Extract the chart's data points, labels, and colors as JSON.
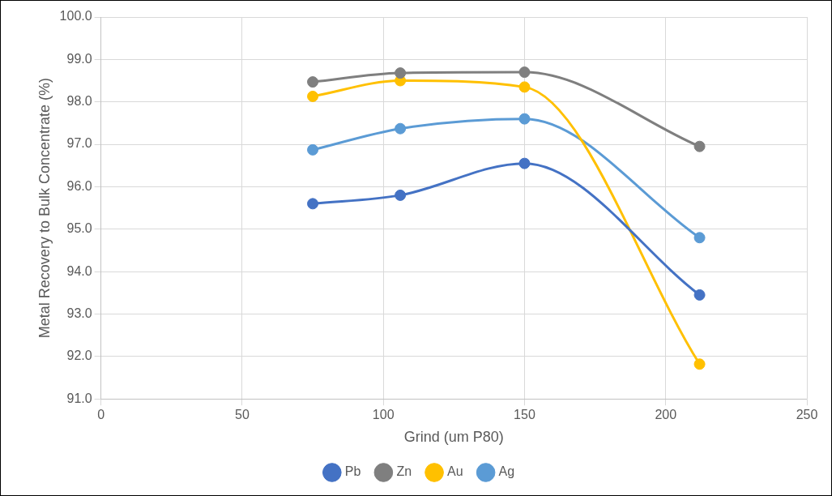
{
  "chart_data": {
    "type": "line",
    "xlabel": "Grind (um P80)",
    "ylabel": "Metal Recovery to Bulk Concentrate (%)",
    "x": [
      75,
      106,
      150,
      212
    ],
    "series": [
      {
        "name": "Pb",
        "color": "#4472c4",
        "values": [
          95.6,
          95.8,
          96.55,
          93.45
        ]
      },
      {
        "name": "Zn",
        "color": "#7f7f7f",
        "values": [
          98.47,
          98.68,
          98.7,
          96.95
        ]
      },
      {
        "name": "Au",
        "color": "#ffc000",
        "values": [
          98.13,
          98.5,
          98.35,
          91.82
        ]
      },
      {
        "name": "Ag",
        "color": "#5b9bd5",
        "values": [
          96.87,
          97.37,
          97.6,
          94.8
        ]
      }
    ],
    "xlim": [
      0,
      250
    ],
    "xticks": [
      0,
      50,
      100,
      150,
      200,
      250
    ],
    "ylim": [
      91,
      100
    ],
    "yticks": [
      {
        "value": 91,
        "label": "91.0"
      },
      {
        "value": 92,
        "label": "92.0"
      },
      {
        "value": 93,
        "label": "93.0"
      },
      {
        "value": 94,
        "label": "94.0"
      },
      {
        "value": 95,
        "label": "95.0"
      },
      {
        "value": 96,
        "label": "96.0"
      },
      {
        "value": 97,
        "label": "97.0"
      },
      {
        "value": 98,
        "label": "98.0"
      },
      {
        "value": 99,
        "label": "99.0"
      },
      {
        "value": 100,
        "label": "100.0"
      }
    ],
    "grid": true,
    "legend": "bottom",
    "marker": "circle",
    "line_style": "solid"
  }
}
